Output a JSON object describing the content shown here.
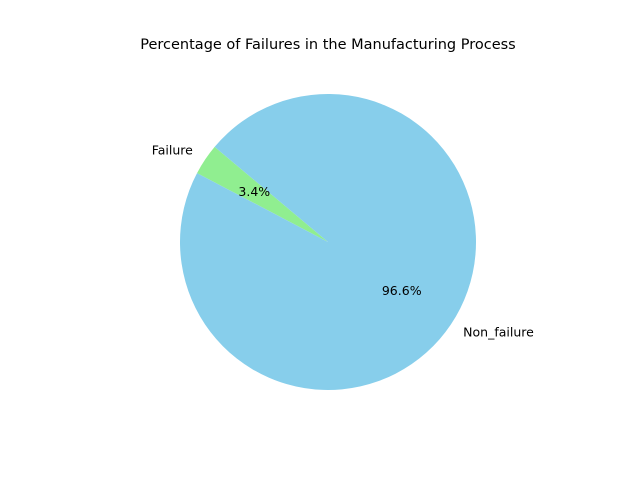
{
  "chart_data": {
    "type": "pie",
    "title": "Percentage of Failures in the Manufacturing Process",
    "categories": [
      "Failure",
      "Non_failure"
    ],
    "values": [
      3.4,
      96.6
    ],
    "percent_labels": [
      "3.4%",
      "96.6%"
    ],
    "colors": [
      "#90ee90",
      "#87ceeb"
    ],
    "start_angle_deg": 140,
    "direction": "counterclockwise",
    "legend": "none"
  }
}
